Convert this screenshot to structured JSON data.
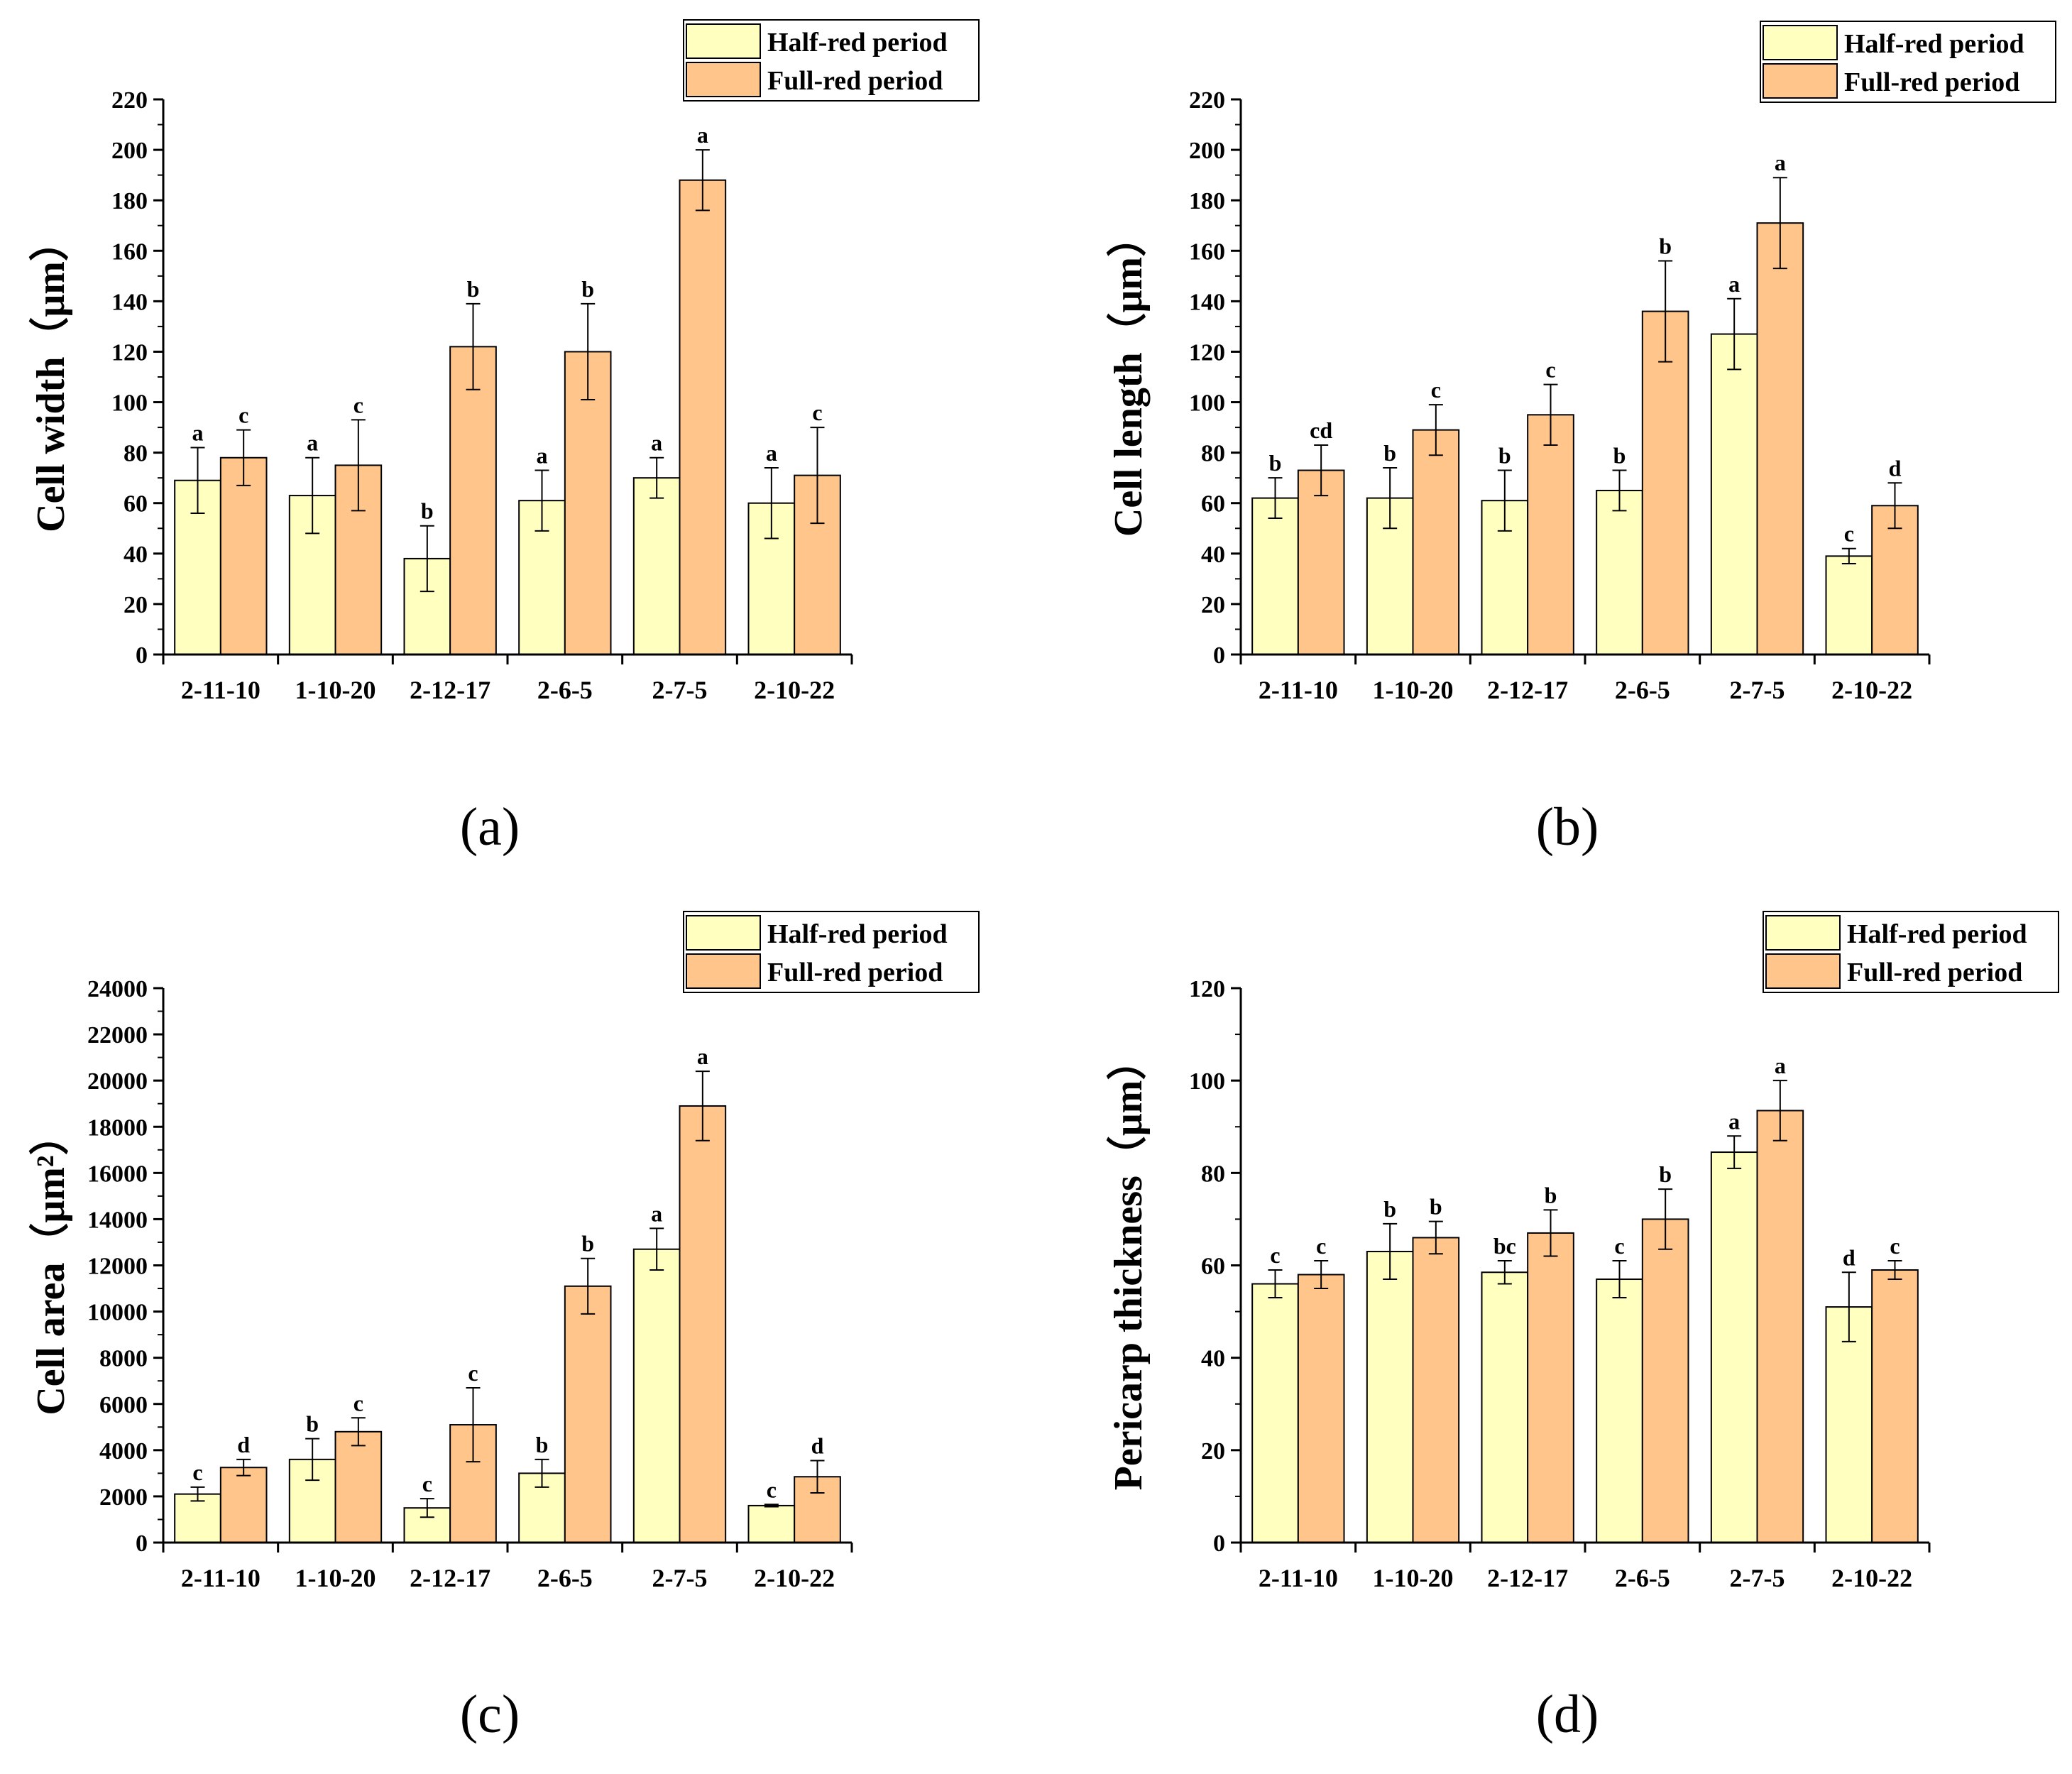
{
  "chart_data": [
    {
      "type": "bar",
      "panel_label": "(a)",
      "ylabel": "Cell width（μm）",
      "ylim": [
        0,
        220
      ],
      "ytick_step": 20,
      "categories": [
        "2-11-10",
        "1-10-20",
        "2-12-17",
        "2-6-5",
        "2-7-5",
        "2-10-22"
      ],
      "legend": [
        "Half-red period",
        "Full-red period"
      ],
      "legend_position": "top-right",
      "series": [
        {
          "name": "Half-red period",
          "color": "#FFFFC0",
          "values": [
            69,
            63,
            38,
            61,
            70,
            60
          ],
          "errors": [
            13,
            15,
            13,
            12,
            8,
            14
          ],
          "letters": [
            "a",
            "a",
            "b",
            "a",
            "a",
            "a"
          ]
        },
        {
          "name": "Full-red period",
          "color": "#FFC58A",
          "values": [
            78,
            75,
            122,
            120,
            188,
            71
          ],
          "errors": [
            11,
            18,
            17,
            19,
            12,
            19
          ],
          "letters": [
            "c",
            "c",
            "b",
            "b",
            "a",
            "c"
          ]
        }
      ]
    },
    {
      "type": "bar",
      "panel_label": "(b)",
      "ylabel": "Cell length（μm）",
      "ylim": [
        0,
        220
      ],
      "ytick_step": 20,
      "categories": [
        "2-11-10",
        "1-10-20",
        "2-12-17",
        "2-6-5",
        "2-7-5",
        "2-10-22"
      ],
      "legend": [
        "Half-red period",
        "Full-red period"
      ],
      "legend_position": "top-right",
      "series": [
        {
          "name": "Half-red period",
          "color": "#FFFFC0",
          "values": [
            62,
            62,
            61,
            65,
            127,
            39
          ],
          "errors": [
            8,
            12,
            12,
            8,
            14,
            3
          ],
          "letters": [
            "b",
            "b",
            "b",
            "b",
            "a",
            "c"
          ]
        },
        {
          "name": "Full-red period",
          "color": "#FFC58A",
          "values": [
            73,
            89,
            95,
            136,
            171,
            59
          ],
          "errors": [
            10,
            10,
            12,
            20,
            18,
            9
          ],
          "letters": [
            "cd",
            "c",
            "c",
            "b",
            "a",
            "d"
          ]
        }
      ]
    },
    {
      "type": "bar",
      "panel_label": "(c)",
      "ylabel": "Cell area（μm²）",
      "ylim": [
        0,
        24000
      ],
      "ytick_step": 2000,
      "categories": [
        "2-11-10",
        "1-10-20",
        "2-12-17",
        "2-6-5",
        "2-7-5",
        "2-10-22"
      ],
      "legend": [
        "Half-red period",
        "Full-red period"
      ],
      "legend_position": "top-right",
      "series": [
        {
          "name": "Half-red period",
          "color": "#FFFFC0",
          "values": [
            2100,
            3600,
            1500,
            3000,
            12700,
            1600
          ],
          "errors": [
            300,
            900,
            400,
            600,
            900,
            50
          ],
          "letters": [
            "c",
            "b",
            "c",
            "b",
            "a",
            "c"
          ]
        },
        {
          "name": "Full-red period",
          "color": "#FFC58A",
          "values": [
            3250,
            4800,
            5100,
            11100,
            18900,
            2850
          ],
          "errors": [
            350,
            600,
            1600,
            1200,
            1500,
            700
          ],
          "letters": [
            "d",
            "c",
            "c",
            "b",
            "a",
            "d"
          ]
        }
      ]
    },
    {
      "type": "bar",
      "panel_label": "(d)",
      "ylabel": "Pericarp thickness（μm）",
      "ylim": [
        0,
        120
      ],
      "ytick_step": 20,
      "categories": [
        "2-11-10",
        "1-10-20",
        "2-12-17",
        "2-6-5",
        "2-7-5",
        "2-10-22"
      ],
      "legend": [
        "Half-red period",
        "Full-red period"
      ],
      "legend_position": "top-right",
      "series": [
        {
          "name": "Half-red period",
          "color": "#FFFFC0",
          "values": [
            56,
            63,
            58.5,
            57,
            84.5,
            51
          ],
          "errors": [
            3,
            6,
            2.5,
            4,
            3.5,
            7.5
          ],
          "letters": [
            "c",
            "b",
            "bc",
            "c",
            "a",
            "d"
          ]
        },
        {
          "name": "Full-red period",
          "color": "#FFC58A",
          "values": [
            58,
            66,
            67,
            70,
            93.5,
            59
          ],
          "errors": [
            3,
            3.5,
            5,
            6.5,
            6.5,
            2
          ],
          "letters": [
            "c",
            "b",
            "b",
            "b",
            "a",
            "c"
          ]
        }
      ]
    }
  ]
}
